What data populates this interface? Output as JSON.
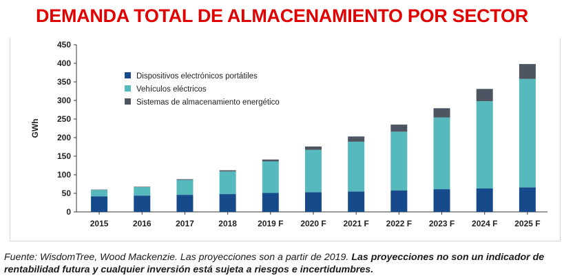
{
  "title": "DEMANDA TOTAL DE ALMACENAMIENTO POR SECTOR",
  "footnote": {
    "plain": "Fuente: WisdomTree, Wood Mackenzie. Las proyecciones son a partir de 2019. ",
    "bold": "Las proyecciones no son un indicador de rentabilidad futura y cualquier inversión está sujeta a riesgos e incertidumbres."
  },
  "colors": {
    "title": "#e00000",
    "series": [
      "#174a8b",
      "#55b9bd",
      "#4d5563"
    ],
    "axis": "#333333"
  },
  "chart_data": {
    "type": "bar",
    "stacked": true,
    "ylabel": "GWh",
    "xlabel": "",
    "ylim": [
      0,
      450
    ],
    "yticks": [
      0,
      50,
      100,
      150,
      200,
      250,
      300,
      350,
      400,
      450
    ],
    "grid": false,
    "legend_position": "top-left",
    "categories": [
      "2015",
      "2016",
      "2017",
      "2018",
      "2019 F",
      "2020 F",
      "2021 F",
      "2022 F",
      "2023 F",
      "2024 F",
      "2025 F"
    ],
    "series": [
      {
        "name": "Dispositivos electrónicos portátiles",
        "values": [
          42,
          44,
          46,
          48,
          51,
          53,
          55,
          58,
          61,
          63,
          66
        ]
      },
      {
        "name": "Vehículos eléctricos",
        "values": [
          17,
          23,
          40,
          61,
          85,
          114,
          134,
          158,
          193,
          235,
          292
        ]
      },
      {
        "name": "Sistemas de almacenamiento energético",
        "values": [
          1,
          1,
          2,
          3,
          5,
          9,
          14,
          19,
          25,
          33,
          40
        ]
      }
    ]
  }
}
